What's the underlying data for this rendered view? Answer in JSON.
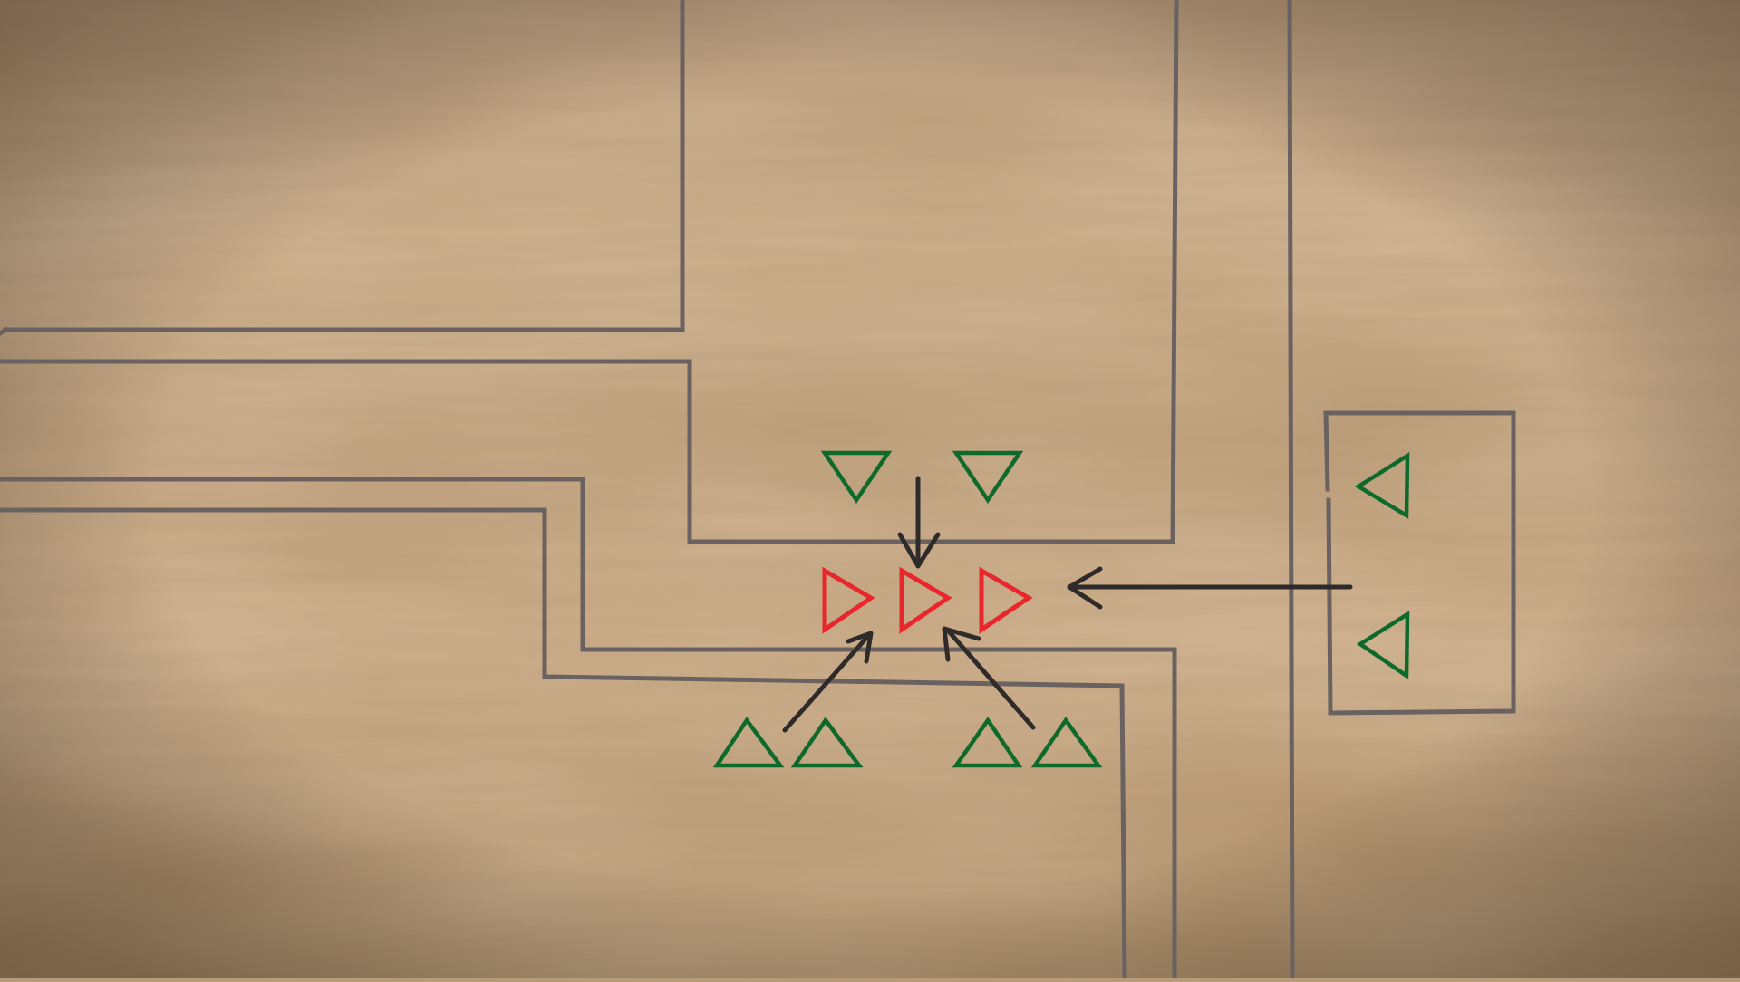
{
  "diagram": {
    "kind": "tactical-ambush-map",
    "colors": {
      "parchment_light": "#d6b48f",
      "parchment_mid": "#b8976f",
      "parchment_dark": "#6f5538",
      "wall": "#6a6260",
      "friendly": "#0d6a2a",
      "hostile": "#e8262b",
      "arrow": "#2f2b2a"
    },
    "units": {
      "hostile_group": [
        {
          "id": "hostile-1",
          "facing": "right"
        },
        {
          "id": "hostile-2",
          "facing": "right"
        },
        {
          "id": "hostile-3",
          "facing": "right"
        }
      ],
      "friendly_groups": [
        {
          "id": "north-pair",
          "facing": "down",
          "count": 2
        },
        {
          "id": "southwest-pair",
          "facing": "up",
          "count": 2
        },
        {
          "id": "southeast-pair",
          "facing": "up",
          "count": 2
        },
        {
          "id": "east-building-pair",
          "facing": "left",
          "count": 2
        }
      ]
    },
    "movement_arrows": [
      {
        "id": "north-arrow",
        "from": "north-pair",
        "to": "hostile-2"
      },
      {
        "id": "southwest-arrow",
        "from": "southwest-pair",
        "to": "hostile-1"
      },
      {
        "id": "southeast-arrow",
        "from": "southeast-pair",
        "to": "hostile-2"
      },
      {
        "id": "east-arrow",
        "from": "east-building-pair",
        "to": "hostile-3"
      }
    ]
  }
}
